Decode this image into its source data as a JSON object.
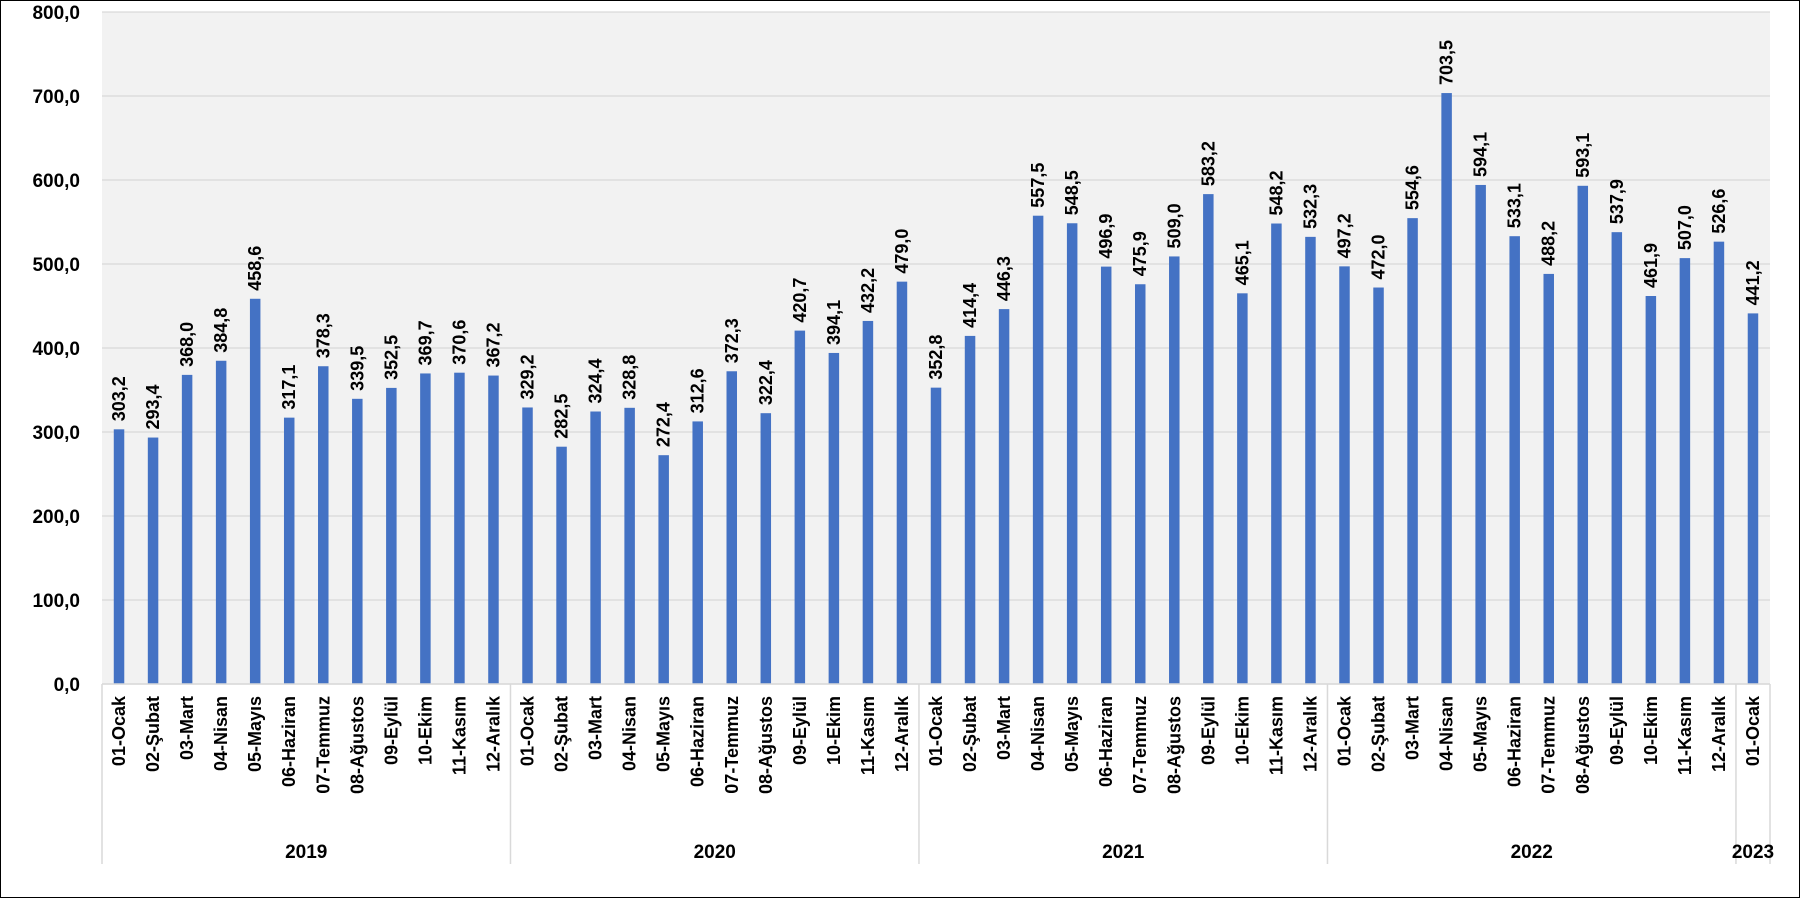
{
  "chart_data": {
    "type": "bar",
    "ylim": [
      0,
      800
    ],
    "yticks": [
      "0,0",
      "100,0",
      "200,0",
      "300,0",
      "400,0",
      "500,0",
      "600,0",
      "700,0",
      "800,0"
    ],
    "grid": true,
    "legend": "none",
    "colors": {
      "bar": "#4472C4",
      "plot_bg": "#F2F2F2",
      "grid": "#D9D9D9"
    },
    "groups": [
      {
        "year": "2019",
        "categories": [
          "01-Ocak",
          "02-Şubat",
          "03-Mart",
          "04-Nisan",
          "05-Mayıs",
          "06-Haziran",
          "07-Temmuz",
          "08-Ağustos",
          "09-Eylül",
          "10-Ekim",
          "11-Kasım",
          "12-Aralık"
        ],
        "values": [
          303.2,
          293.4,
          368.0,
          384.8,
          458.6,
          317.1,
          378.3,
          339.5,
          352.5,
          369.7,
          370.6,
          367.2
        ],
        "labels": [
          "303,2",
          "293,4",
          "368,0",
          "384,8",
          "458,6",
          "317,1",
          "378,3",
          "339,5",
          "352,5",
          "369,7",
          "370,6",
          "367,2"
        ]
      },
      {
        "year": "2020",
        "categories": [
          "01-Ocak",
          "02-Şubat",
          "03-Mart",
          "04-Nisan",
          "05-Mayıs",
          "06-Haziran",
          "07-Temmuz",
          "08-Ağustos",
          "09-Eylül",
          "10-Ekim",
          "11-Kasım",
          "12-Aralık"
        ],
        "values": [
          329.2,
          282.5,
          324.4,
          328.8,
          272.4,
          312.6,
          372.3,
          322.4,
          420.7,
          394.1,
          432.2,
          479.0
        ],
        "labels": [
          "329,2",
          "282,5",
          "324,4",
          "328,8",
          "272,4",
          "312,6",
          "372,3",
          "322,4",
          "420,7",
          "394,1",
          "432,2",
          "479,0"
        ]
      },
      {
        "year": "2021",
        "categories": [
          "01-Ocak",
          "02-Şubat",
          "03-Mart",
          "04-Nisan",
          "05-Mayıs",
          "06-Haziran",
          "07-Temmuz",
          "08-Ağustos",
          "09-Eylül",
          "10-Ekim",
          "11-Kasım",
          "12-Aralık"
        ],
        "values": [
          352.8,
          414.4,
          446.3,
          557.5,
          548.5,
          496.9,
          475.9,
          509.0,
          583.2,
          465.1,
          548.2,
          532.3
        ],
        "labels": [
          "352,8",
          "414,4",
          "446,3",
          "557,5",
          "548,5",
          "496,9",
          "475,9",
          "509,0",
          "583,2",
          "465,1",
          "548,2",
          "532,3"
        ]
      },
      {
        "year": "2022",
        "categories": [
          "01-Ocak",
          "02-Şubat",
          "03-Mart",
          "04-Nisan",
          "05-Mayıs",
          "06-Haziran",
          "07-Temmuz",
          "08-Ağustos",
          "09-Eylül",
          "10-Ekim",
          "11-Kasım",
          "12-Aralık"
        ],
        "values": [
          497.2,
          472.0,
          554.6,
          703.5,
          594.1,
          533.1,
          488.2,
          593.1,
          537.9,
          461.9,
          507.0,
          526.6
        ],
        "labels": [
          "497,2",
          "472,0",
          "554,6",
          "703,5",
          "594,1",
          "533,1",
          "488,2",
          "593,1",
          "537,9",
          "461,9",
          "507,0",
          "526,6"
        ]
      },
      {
        "year": "2023",
        "categories": [
          "01-Ocak"
        ],
        "values": [
          441.2
        ],
        "labels": [
          "441,2"
        ]
      }
    ]
  }
}
